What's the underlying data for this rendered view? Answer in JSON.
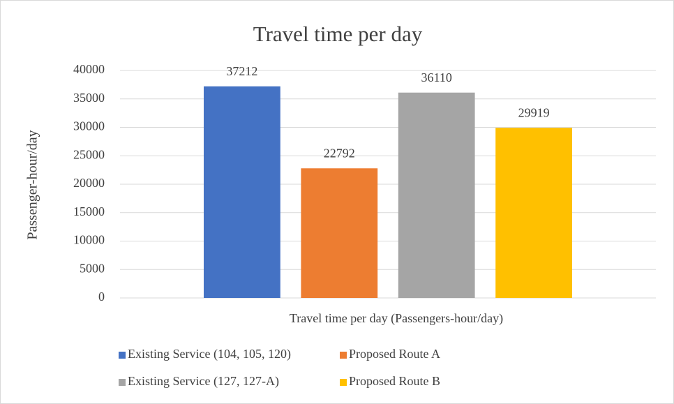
{
  "chart_data": {
    "type": "bar",
    "title": "Travel time per day",
    "y_label": "Passenger-hour/day",
    "categories": [
      "Travel time per day (Passengers-hour/day)"
    ],
    "series": [
      {
        "name": "Existing Service (104, 105, 120)",
        "color": "#4472c4",
        "values": [
          37212
        ]
      },
      {
        "name": "Proposed Route A",
        "color": "#ed7d31",
        "values": [
          22792
        ]
      },
      {
        "name": "Existing Service (127, 127-A)",
        "color": "#a5a5a5",
        "values": [
          36110
        ]
      },
      {
        "name": "Proposed Route B",
        "color": "#ffc000",
        "values": [
          29919
        ]
      }
    ],
    "ylim": [
      0,
      40000
    ],
    "yticks": [
      0,
      5000,
      10000,
      15000,
      20000,
      25000,
      30000,
      35000,
      40000
    ],
    "grid": true,
    "legend": "bottom",
    "data_labels": true
  }
}
